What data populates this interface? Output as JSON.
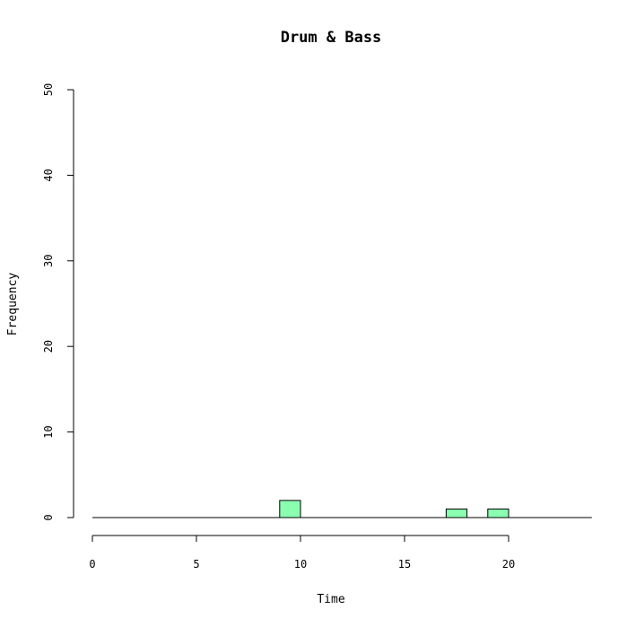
{
  "chart_data": {
    "type": "bar",
    "title": "Drum & Bass",
    "xlabel": "Time",
    "ylabel": "Frequency",
    "xlim": [
      0,
      24
    ],
    "ylim": [
      0,
      50
    ],
    "x_ticks": [
      0,
      5,
      10,
      15,
      20
    ],
    "y_ticks": [
      0,
      10,
      20,
      30,
      40,
      50
    ],
    "bin_width": 1,
    "bins": [
      {
        "start": 9,
        "end": 10,
        "count": 2
      },
      {
        "start": 17,
        "end": 18,
        "count": 1
      },
      {
        "start": 19,
        "end": 20,
        "count": 1
      }
    ],
    "bar_color": "#8affb0",
    "grid": false,
    "legend": "none"
  }
}
